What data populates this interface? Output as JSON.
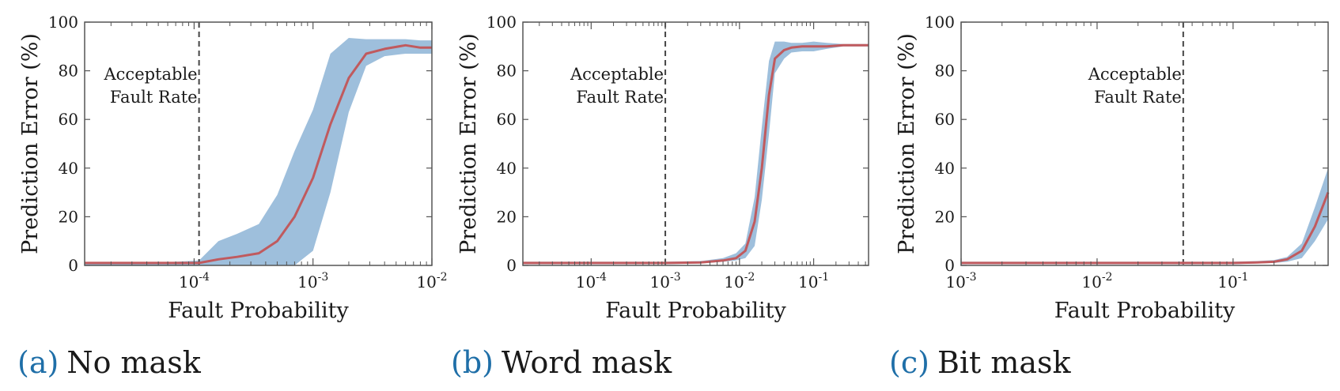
{
  "chart_data": [
    {
      "type": "line",
      "panel_label": "(a)",
      "caption": "No mask",
      "xlabel": "Fault Probability",
      "ylabel": "Prediction Error (%)",
      "xscale": "log",
      "xlim": [
        1.2e-05,
        0.01
      ],
      "ylim": [
        0,
        100
      ],
      "xticks": [
        0.0001,
        0.001,
        0.01
      ],
      "xtick_labels": [
        "10",
        "10",
        "10"
      ],
      "xtick_exponents": [
        "-4",
        "-3",
        "-2"
      ],
      "yticks": [
        0,
        20,
        40,
        60,
        80,
        100
      ],
      "ytick_labels": [
        "0",
        "20",
        "40",
        "60",
        "80",
        "100"
      ],
      "threshold_line": 0.00011,
      "annotation": [
        "Acceptable",
        "Fault Rate"
      ],
      "series": [
        {
          "x": [
            1.2e-05,
            3e-05,
            7e-05,
            0.00011,
            0.00016,
            0.00023,
            0.00035,
            0.0005,
            0.0007,
            0.001,
            0.0014,
            0.002,
            0.0028,
            0.004,
            0.006,
            0.008,
            0.01
          ],
          "y": [
            1,
            1,
            1,
            1,
            2.5,
            3.5,
            5,
            10,
            20,
            36,
            58,
            77,
            87,
            89,
            90.5,
            89.5,
            89.5
          ],
          "lower": [
            0,
            0,
            0,
            0,
            0,
            0,
            0,
            0,
            0,
            6,
            30,
            63,
            82,
            86,
            87,
            87,
            87
          ],
          "upper": [
            1,
            1,
            1.5,
            2,
            10,
            13,
            17,
            29,
            47,
            64,
            87,
            93.5,
            93,
            93,
            93,
            92.5,
            92.5
          ]
        }
      ]
    },
    {
      "type": "line",
      "panel_label": "(b)",
      "caption": "Word mask",
      "xlabel": "Fault Probability",
      "ylabel": "Prediction Error (%)",
      "xscale": "log",
      "xlim": [
        1.2e-05,
        0.55
      ],
      "ylim": [
        0,
        100
      ],
      "xticks": [
        0.0001,
        0.001,
        0.01,
        0.1
      ],
      "xtick_labels": [
        "10",
        "10",
        "10",
        "10"
      ],
      "xtick_exponents": [
        "-4",
        "-3",
        "-2",
        "-1"
      ],
      "yticks": [
        0,
        20,
        40,
        60,
        80,
        100
      ],
      "ytick_labels": [
        "0",
        "20",
        "40",
        "60",
        "80",
        "100"
      ],
      "threshold_line": 0.001,
      "annotation": [
        "Acceptable",
        "Fault Rate"
      ],
      "series": [
        {
          "x": [
            1.2e-05,
            0.0001,
            0.001,
            0.003,
            0.006,
            0.009,
            0.012,
            0.016,
            0.02,
            0.025,
            0.03,
            0.04,
            0.05,
            0.07,
            0.1,
            0.15,
            0.25,
            0.55
          ],
          "y": [
            1,
            1,
            1,
            1.2,
            2,
            3,
            6,
            18,
            40,
            70,
            85,
            88.5,
            89.5,
            90,
            90,
            90,
            90.5,
            90.5
          ],
          "lower": [
            0.5,
            0.5,
            0.5,
            0.8,
            1.5,
            2,
            3,
            8,
            27,
            54,
            79,
            85,
            87.5,
            88,
            88,
            89,
            90,
            90
          ],
          "upper": [
            1.5,
            1.5,
            1.5,
            1.8,
            3,
            5,
            9,
            28,
            57,
            84,
            92,
            92,
            91.5,
            91.5,
            92,
            91.5,
            91,
            91
          ]
        }
      ]
    },
    {
      "type": "line",
      "panel_label": "(c)",
      "caption": "Bit mask",
      "xlabel": "Fault Probability",
      "ylabel": "Prediction Error (%)",
      "xscale": "log",
      "xlim": [
        0.001,
        0.5
      ],
      "ylim": [
        0,
        100
      ],
      "xticks": [
        0.001,
        0.01,
        0.1
      ],
      "xtick_labels": [
        "10",
        "10",
        "10"
      ],
      "xtick_exponents": [
        "-3",
        "-2",
        "-1"
      ],
      "yticks": [
        0,
        20,
        40,
        60,
        80,
        100
      ],
      "ytick_labels": [
        "0",
        "20",
        "40",
        "60",
        "80",
        "100"
      ],
      "threshold_line": 0.043,
      "annotation": [
        "Acceptable",
        "Fault Rate"
      ],
      "series": [
        {
          "x": [
            0.001,
            0.01,
            0.05,
            0.1,
            0.15,
            0.2,
            0.25,
            0.32,
            0.4,
            0.5
          ],
          "y": [
            1,
            1,
            1,
            1,
            1.2,
            1.5,
            2.5,
            6,
            16,
            30
          ],
          "lower": [
            0.5,
            0.5,
            0.5,
            0.5,
            0.8,
            1,
            1.5,
            3,
            10,
            19
          ],
          "upper": [
            1.5,
            1.5,
            1.5,
            1.5,
            1.8,
            2.2,
            3.5,
            9,
            24,
            40
          ]
        }
      ]
    }
  ],
  "colors": {
    "line": "#c05a5e",
    "band": "#9ebfdc",
    "axis": "#555555",
    "caption_label": "#1f6fa8"
  }
}
